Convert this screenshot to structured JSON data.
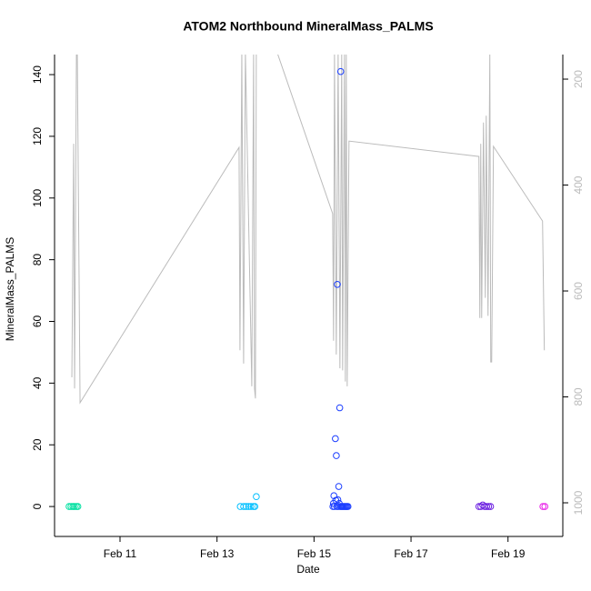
{
  "chart_data": {
    "type": "scatter",
    "title": "ATOM2 Northbound MineralMass_PALMS",
    "x_label": "Date",
    "y_label": "MineralMass_PALMS",
    "xlim": [
      9.65,
      20.13
    ],
    "xticks": [
      {
        "value": 11,
        "label": "Feb 11"
      },
      {
        "value": 13,
        "label": "Feb 13"
      },
      {
        "value": 15,
        "label": "Feb 15"
      },
      {
        "value": 17,
        "label": "Feb 17"
      },
      {
        "value": 19,
        "label": "Feb 19"
      }
    ],
    "ylim": [
      -9.7,
      146.5
    ],
    "yticks": [
      0,
      20,
      40,
      60,
      80,
      100,
      120,
      140
    ],
    "y2lim": [
      1063.5,
      153.6
    ],
    "y2ticks": [
      200,
      400,
      600,
      800,
      1000
    ],
    "series": [
      {
        "color": "#00e0a0",
        "x": [
          9.95,
          9.99,
          10.03,
          10.06,
          10.1,
          10.13
        ],
        "values": [
          0,
          0,
          0,
          0,
          0,
          0
        ]
      },
      {
        "color": "#00bfff",
        "x": [
          13.48,
          13.55,
          13.6,
          13.65,
          13.7,
          13.75,
          13.78,
          13.81
        ],
        "values": [
          0,
          0,
          0,
          0,
          0,
          0,
          0,
          3.2
        ]
      },
      {
        "color": "#1c3fff",
        "x": [
          15.39,
          15.4,
          15.41,
          15.42,
          15.44,
          15.45,
          15.46,
          15.47,
          15.48,
          15.49,
          15.5,
          15.51,
          15.52,
          15.53,
          15.54,
          15.55,
          15.56,
          15.58,
          15.6,
          15.62,
          15.64,
          15.66,
          15.68,
          15.7
        ],
        "values": [
          0,
          1,
          3.5,
          0,
          22,
          2,
          16.5,
          0,
          72,
          2.2,
          0,
          6.5,
          1,
          32,
          0,
          141,
          0,
          0,
          0,
          0,
          0,
          0,
          0,
          0
        ]
      },
      {
        "color": "#6a1ee0",
        "x": [
          18.4,
          18.44,
          18.48,
          18.52,
          18.56,
          18.6,
          18.64
        ],
        "values": [
          0,
          0,
          0.5,
          0,
          0,
          0,
          0
        ]
      },
      {
        "color": "#e81ee8",
        "x": [
          19.72,
          19.76
        ],
        "values": [
          0,
          0
        ]
      },
      {
        "type": "line",
        "axis": "y2",
        "color": "#bbbbbb",
        "x": [
          10.007,
          10.044,
          10.063,
          10.101,
          10.119,
          10.176,
          13.454,
          13.473,
          13.511,
          13.548,
          13.585,
          13.717,
          13.754,
          13.773,
          13.792,
          13.81,
          14.241,
          15.384,
          15.403,
          15.422,
          15.459,
          15.497,
          15.534,
          15.571,
          15.59,
          15.628,
          15.646,
          15.665,
          15.684,
          15.721,
          18.4,
          18.419,
          18.438,
          18.457,
          18.494,
          18.532,
          18.551,
          18.588,
          18.625,
          18.644,
          18.663,
          18.7,
          19.712,
          19.749
        ],
        "values": [
          763,
          322,
          784,
          150,
          150,
          811,
          329,
          712,
          150,
          737,
          150,
          780,
          150,
          784,
          803,
          150,
          150,
          454,
          694,
          150,
          720,
          150,
          746,
          150,
          750,
          150,
          771,
          150,
          780,
          317,
          346,
          651,
          322,
          651,
          282,
          613,
          269,
          647,
          150,
          734,
          734,
          327,
          468,
          712
        ]
      }
    ]
  }
}
